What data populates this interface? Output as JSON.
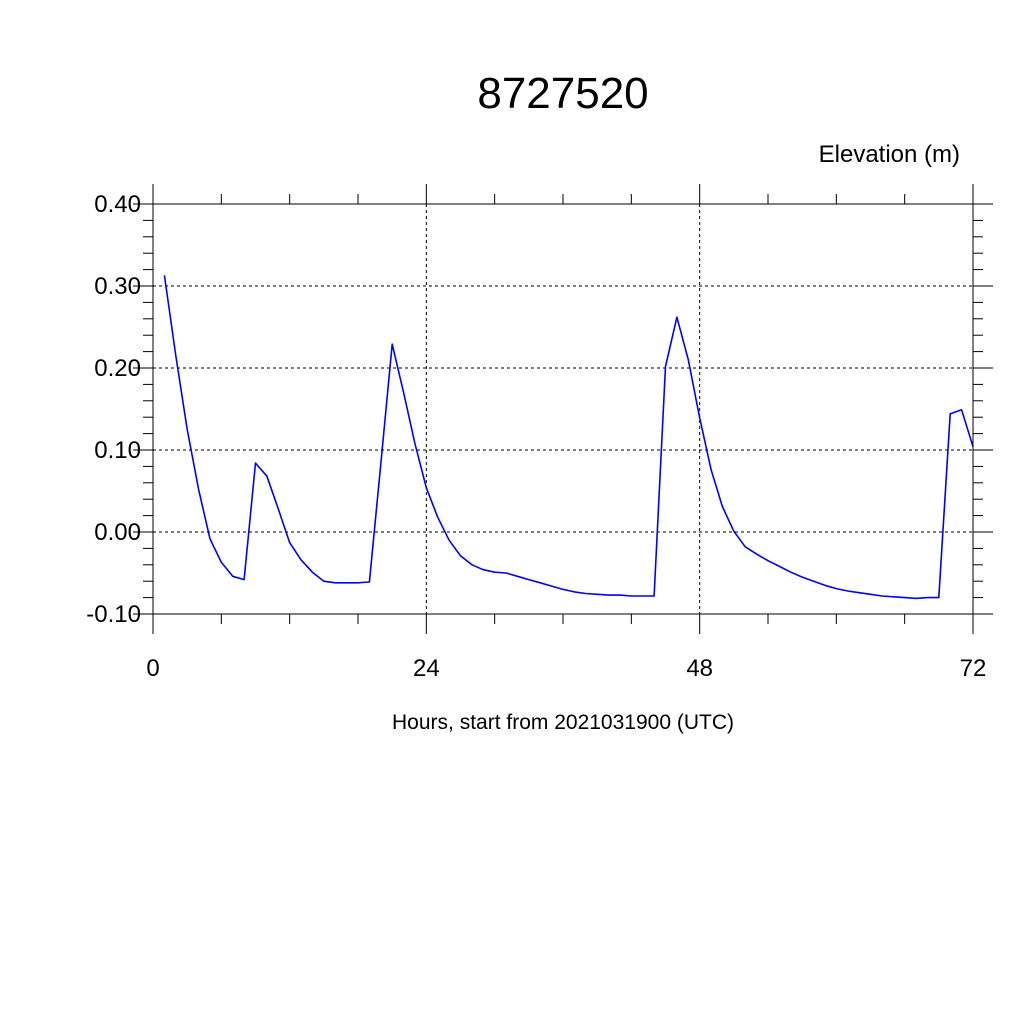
{
  "chart_data": {
    "type": "line",
    "title": "8727520",
    "ylabel": "Elevation (m)",
    "xlabel": "Hours, start from 2021031900 (UTC)",
    "xlim": [
      0,
      72
    ],
    "ylim": [
      -0.1,
      0.4
    ],
    "xticks": [
      0,
      24,
      48,
      72
    ],
    "xtick_labels": [
      "0",
      "24",
      "48",
      "72"
    ],
    "yticks": [
      -0.1,
      0.0,
      0.1,
      0.2,
      0.3,
      0.4
    ],
    "ytick_labels": [
      "-0.10",
      "0.00",
      "0.10",
      "0.20",
      "0.30",
      "0.40"
    ],
    "grid": true,
    "colors": {
      "line": "#0000ff",
      "axis": "#000000",
      "grid": "#000000",
      "background": "#ffffff"
    },
    "series": [
      {
        "x": [
          1,
          2,
          3,
          4,
          5,
          6,
          7,
          8,
          9,
          10,
          11,
          12,
          13,
          14,
          15,
          16,
          17,
          18,
          19,
          20,
          21,
          22,
          23,
          24,
          25,
          26,
          27,
          28,
          29,
          30,
          31,
          32,
          33,
          34,
          35,
          36,
          37,
          38,
          39,
          40,
          41,
          42,
          43,
          44,
          45,
          46,
          47,
          48,
          49,
          50,
          51,
          52,
          53,
          54,
          55,
          56,
          57,
          58,
          59,
          60,
          61,
          62,
          63,
          64,
          65,
          66,
          67,
          68,
          69,
          70,
          71,
          72
        ],
        "values": [
          0.313,
          0.215,
          0.125,
          0.052,
          -0.008,
          -0.037,
          -0.054,
          -0.058,
          0.084,
          0.068,
          0.028,
          -0.013,
          -0.034,
          -0.049,
          -0.06,
          -0.062,
          -0.062,
          -0.062,
          -0.061,
          0.083,
          0.229,
          0.17,
          0.108,
          0.054,
          0.018,
          -0.01,
          -0.029,
          -0.04,
          -0.046,
          -0.049,
          -0.05,
          -0.054,
          -0.058,
          -0.062,
          -0.066,
          -0.07,
          -0.073,
          -0.075,
          -0.076,
          -0.077,
          -0.077,
          -0.078,
          -0.078,
          -0.078,
          0.202,
          0.262,
          0.21,
          0.139,
          0.076,
          0.031,
          0.001,
          -0.018,
          -0.027,
          -0.035,
          -0.042,
          -0.049,
          -0.055,
          -0.06,
          -0.065,
          -0.069,
          -0.072,
          -0.074,
          -0.076,
          -0.078,
          -0.079,
          -0.08,
          -0.081,
          -0.08,
          -0.08,
          0.144,
          0.149,
          0.104
        ]
      }
    ]
  }
}
